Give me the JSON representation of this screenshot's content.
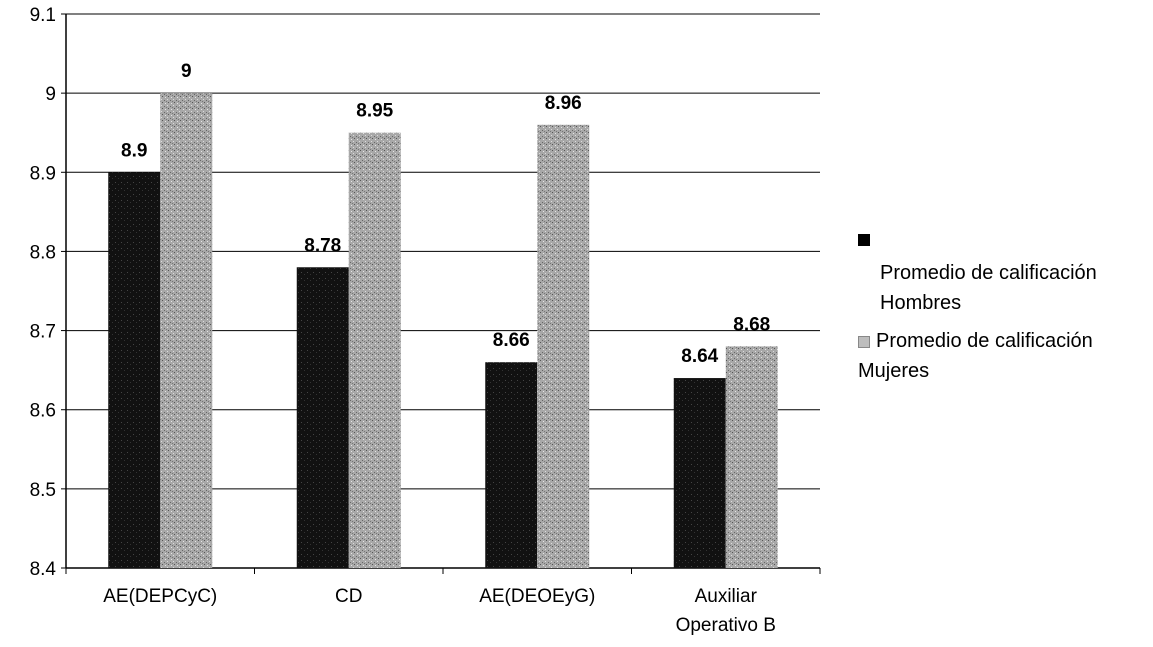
{
  "chart_data": {
    "type": "bar",
    "categories": [
      "AE(DEPCyC)",
      "CD",
      "AE(DEOEyG)",
      "Auxiliar Operativo B"
    ],
    "series": [
      {
        "name": "Promedio de calificación Hombres",
        "values": [
          8.9,
          8.78,
          8.66,
          8.64
        ],
        "value_labels": [
          "8.9",
          "8.78",
          "8.66",
          "8.64"
        ],
        "color": "#0a0a0a"
      },
      {
        "name": "Promedio de calificación Mujeres",
        "values": [
          9,
          8.95,
          8.96,
          8.68
        ],
        "value_labels": [
          "9",
          "8.95",
          "8.96",
          "8.68"
        ],
        "color": "#9a9a9a"
      }
    ],
    "ylim": [
      8.4,
      9.1
    ],
    "yticks": [
      "8.4",
      "8.5",
      "8.6",
      "8.7",
      "8.8",
      "8.9",
      "9",
      "9.1"
    ],
    "grid": true,
    "legend_position": "right"
  }
}
